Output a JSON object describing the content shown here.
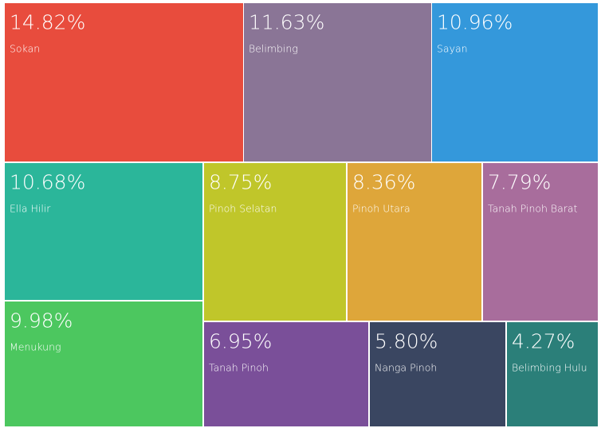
{
  "chart_data": {
    "type": "treemap",
    "categories": [
      "Sokan",
      "Belimbing",
      "Sayan",
      "Ella Hilir",
      "Menukung",
      "Pinoh Selatan",
      "Pinoh Utara",
      "Tanah Pinoh Barat",
      "Tanah Pinoh",
      "Nanga Pinoh",
      "Belimbing Hulu"
    ],
    "values": [
      14.82,
      11.63,
      10.96,
      10.68,
      9.98,
      8.75,
      8.36,
      7.79,
      6.95,
      5.8,
      4.27
    ],
    "value_labels": [
      "14.82%",
      "11.63%",
      "10.96%",
      "10.68%",
      "9.98%",
      "8.75%",
      "8.36%",
      "7.79%",
      "6.95%",
      "5.80%",
      "4.27%"
    ],
    "colors": [
      "#e84c3d",
      "#8a7596",
      "#3498db",
      "#2bb69a",
      "#4cc75f",
      "#c0c62a",
      "#dea63a",
      "#a86d9c",
      "#7a4f99",
      "#3a4661",
      "#2b7f79"
    ]
  }
}
